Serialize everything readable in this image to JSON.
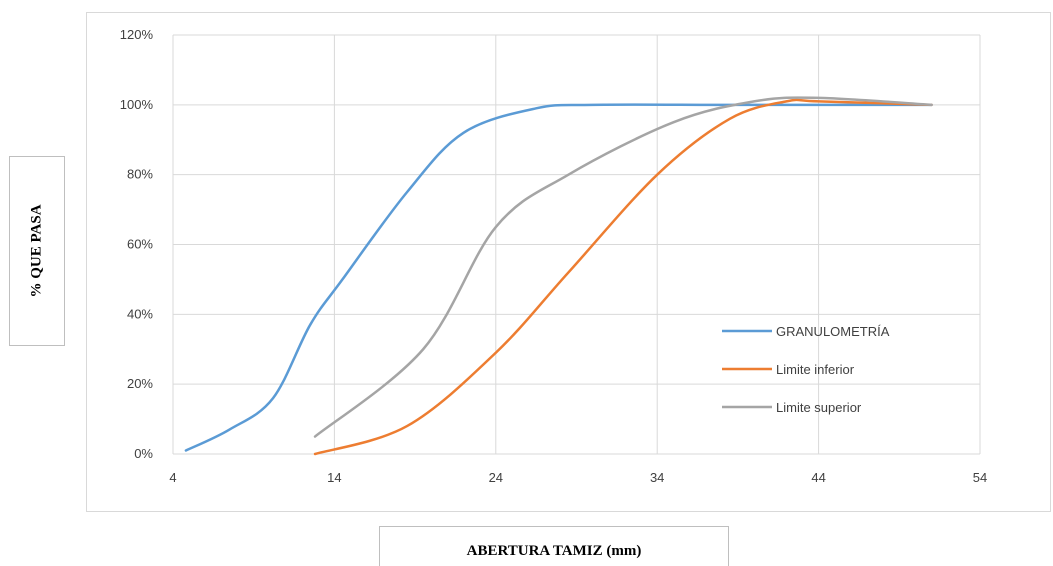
{
  "chart_data": {
    "type": "line",
    "xlabel": "ABERTURA TAMIZ (mm)",
    "ylabel": "% QUE PASA",
    "xlim": [
      4,
      54
    ],
    "ylim": [
      0,
      120
    ],
    "x_ticks": [
      "4",
      "14",
      "24",
      "34",
      "44",
      "54"
    ],
    "y_ticks": [
      "0%",
      "20%",
      "40%",
      "60%",
      "80%",
      "100%",
      "120%"
    ],
    "grid": true,
    "smooth": true,
    "legend_position": "lower-right",
    "series": [
      {
        "name": "GRANULOMETRÍA",
        "color": "#5b9bd5",
        "x": [
          4.8,
          7.5,
          10.2,
          12.5,
          14.5,
          18.5,
          22,
          26.5,
          30,
          38,
          44,
          51
        ],
        "y": [
          1,
          7,
          16,
          37,
          50,
          75,
          92,
          99,
          100,
          100,
          100,
          100
        ]
      },
      {
        "name": "Limite inferior",
        "color": "#ed7d31",
        "x": [
          12.8,
          18.5,
          24,
          28.5,
          34,
          38.5,
          42,
          44,
          51
        ],
        "y": [
          0,
          8,
          29,
          52,
          80,
          96,
          101,
          101,
          100
        ]
      },
      {
        "name": "Limite superior",
        "color": "#a5a5a5",
        "x": [
          12.8,
          19.5,
          24,
          28.5,
          35,
          40,
          44,
          51
        ],
        "y": [
          5,
          30,
          65,
          80,
          95,
          101,
          102,
          100
        ]
      }
    ]
  }
}
